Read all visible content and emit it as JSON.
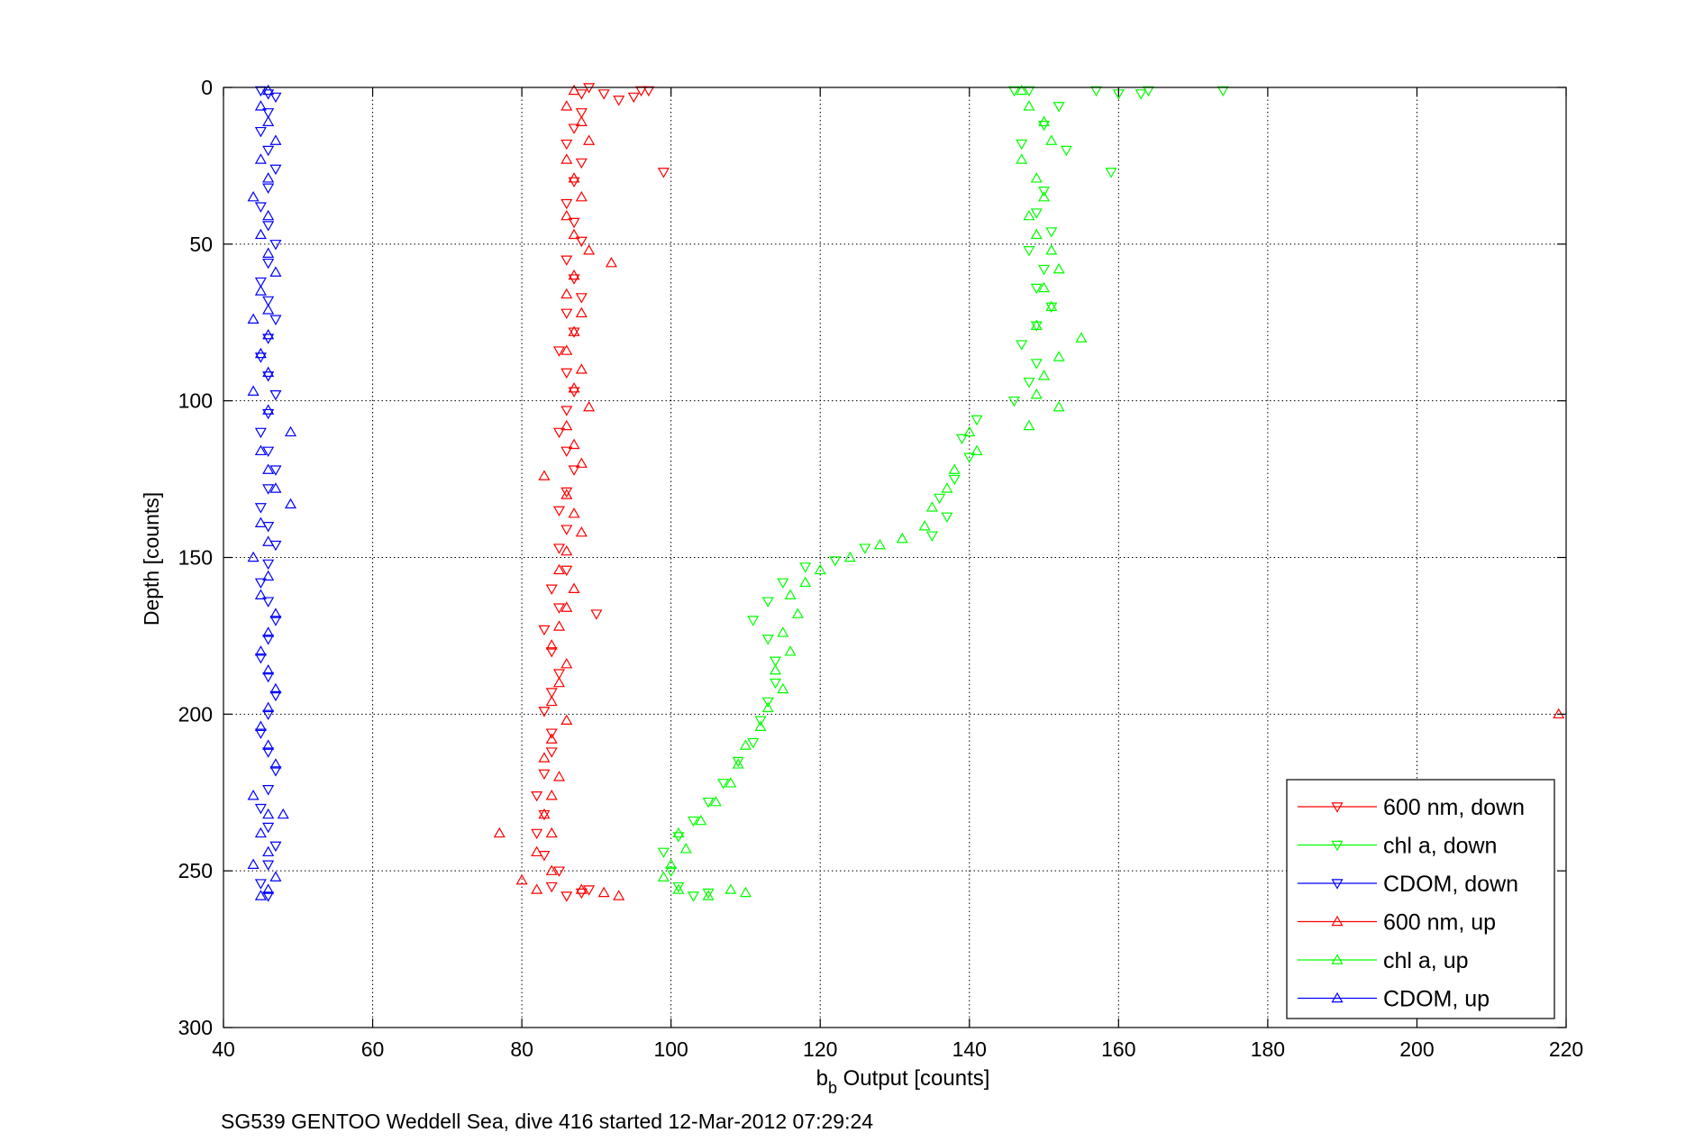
{
  "chart_data": {
    "type": "scatter",
    "xlabel_main": "b",
    "xlabel_sub": "b",
    "xlabel_rest": " Output [counts]",
    "ylabel": "Depth [counts]",
    "caption": "SG539 GENTOO Weddell Sea, dive 416 started 12-Mar-2012 07:29:24",
    "xlim": [
      40,
      220
    ],
    "ylim": [
      0,
      300
    ],
    "y_reversed": true,
    "xticks": [
      40,
      60,
      80,
      100,
      120,
      140,
      160,
      180,
      200,
      220
    ],
    "yticks": [
      0,
      50,
      100,
      150,
      200,
      250,
      300
    ],
    "grid": true,
    "legend_position": "bottom-right",
    "colors": {
      "red": "#ff0000",
      "green": "#00ff00",
      "blue": "#0000ff",
      "axis": "#000000",
      "grid": "#000000"
    },
    "series": [
      {
        "name": "600 nm, down",
        "color": "#ff0000",
        "marker": "triangle-down",
        "points": [
          [
            89,
            0
          ],
          [
            88,
            2
          ],
          [
            95,
            3
          ],
          [
            96,
            1
          ],
          [
            97,
            1
          ],
          [
            91,
            2
          ],
          [
            93,
            4
          ],
          [
            88,
            8
          ],
          [
            87,
            13
          ],
          [
            86,
            18
          ],
          [
            88,
            24
          ],
          [
            99,
            27
          ],
          [
            87,
            30
          ],
          [
            86,
            37
          ],
          [
            87,
            43
          ],
          [
            88,
            49
          ],
          [
            86,
            55
          ],
          [
            87,
            61
          ],
          [
            88,
            67
          ],
          [
            86,
            72
          ],
          [
            87,
            78
          ],
          [
            85,
            84
          ],
          [
            86,
            91
          ],
          [
            87,
            97
          ],
          [
            86,
            103
          ],
          [
            85,
            110
          ],
          [
            86,
            116
          ],
          [
            87,
            122
          ],
          [
            86,
            129
          ],
          [
            85,
            135
          ],
          [
            86,
            141
          ],
          [
            85,
            147
          ],
          [
            86,
            154
          ],
          [
            84,
            160
          ],
          [
            85,
            166
          ],
          [
            90,
            168
          ],
          [
            83,
            173
          ],
          [
            84,
            180
          ],
          [
            85,
            187
          ],
          [
            84,
            193
          ],
          [
            83,
            199
          ],
          [
            84,
            206
          ],
          [
            84,
            212
          ],
          [
            83,
            219
          ],
          [
            82,
            226
          ],
          [
            83,
            232
          ],
          [
            82,
            238
          ],
          [
            83,
            245
          ],
          [
            85,
            250
          ],
          [
            84,
            255
          ],
          [
            86,
            258
          ],
          [
            88,
            257
          ],
          [
            89,
            256
          ]
        ]
      },
      {
        "name": "chl a, down",
        "color": "#00ff00",
        "marker": "triangle-down",
        "points": [
          [
            146,
            1
          ],
          [
            148,
            1
          ],
          [
            157,
            1
          ],
          [
            160,
            2
          ],
          [
            163,
            2
          ],
          [
            164,
            1
          ],
          [
            174,
            1
          ],
          [
            152,
            6
          ],
          [
            150,
            12
          ],
          [
            147,
            18
          ],
          [
            153,
            20
          ],
          [
            159,
            27
          ],
          [
            150,
            33
          ],
          [
            149,
            40
          ],
          [
            151,
            46
          ],
          [
            148,
            52
          ],
          [
            150,
            58
          ],
          [
            149,
            64
          ],
          [
            151,
            70
          ],
          [
            149,
            76
          ],
          [
            147,
            82
          ],
          [
            149,
            88
          ],
          [
            148,
            94
          ],
          [
            146,
            100
          ],
          [
            141,
            106
          ],
          [
            139,
            112
          ],
          [
            140,
            118
          ],
          [
            138,
            125
          ],
          [
            136,
            131
          ],
          [
            137,
            137
          ],
          [
            135,
            143
          ],
          [
            126,
            147
          ],
          [
            122,
            151
          ],
          [
            118,
            153
          ],
          [
            115,
            158
          ],
          [
            113,
            164
          ],
          [
            111,
            170
          ],
          [
            113,
            176
          ],
          [
            114,
            183
          ],
          [
            114,
            190
          ],
          [
            113,
            196
          ],
          [
            112,
            202
          ],
          [
            111,
            209
          ],
          [
            109,
            215
          ],
          [
            107,
            222
          ],
          [
            105,
            228
          ],
          [
            103,
            234
          ],
          [
            101,
            239
          ],
          [
            99,
            244
          ],
          [
            100,
            250
          ],
          [
            101,
            255
          ],
          [
            103,
            258
          ],
          [
            105,
            257
          ]
        ]
      },
      {
        "name": "CDOM, down",
        "color": "#0000ff",
        "marker": "triangle-down",
        "points": [
          [
            45,
            1
          ],
          [
            46,
            2
          ],
          [
            47,
            3
          ],
          [
            46,
            8
          ],
          [
            45,
            14
          ],
          [
            46,
            20
          ],
          [
            47,
            26
          ],
          [
            46,
            32
          ],
          [
            45,
            38
          ],
          [
            46,
            44
          ],
          [
            47,
            50
          ],
          [
            46,
            56
          ],
          [
            45,
            62
          ],
          [
            46,
            68
          ],
          [
            47,
            74
          ],
          [
            46,
            80
          ],
          [
            45,
            86
          ],
          [
            46,
            92
          ],
          [
            47,
            98
          ],
          [
            46,
            104
          ],
          [
            45,
            110
          ],
          [
            46,
            116
          ],
          [
            47,
            122
          ],
          [
            46,
            128
          ],
          [
            45,
            134
          ],
          [
            46,
            140
          ],
          [
            47,
            146
          ],
          [
            46,
            152
          ],
          [
            45,
            158
          ],
          [
            46,
            164
          ],
          [
            47,
            170
          ],
          [
            46,
            176
          ],
          [
            45,
            182
          ],
          [
            46,
            188
          ],
          [
            47,
            194
          ],
          [
            46,
            200
          ],
          [
            45,
            206
          ],
          [
            46,
            212
          ],
          [
            47,
            218
          ],
          [
            46,
            224
          ],
          [
            45,
            230
          ],
          [
            46,
            236
          ],
          [
            47,
            242
          ],
          [
            46,
            248
          ],
          [
            45,
            254
          ],
          [
            46,
            258
          ]
        ]
      },
      {
        "name": "600 nm, up",
        "color": "#ff0000",
        "marker": "triangle-up",
        "points": [
          [
            87,
            1
          ],
          [
            86,
            6
          ],
          [
            88,
            11
          ],
          [
            89,
            17
          ],
          [
            86,
            23
          ],
          [
            87,
            29
          ],
          [
            88,
            35
          ],
          [
            86,
            41
          ],
          [
            87,
            47
          ],
          [
            89,
            52
          ],
          [
            92,
            56
          ],
          [
            87,
            60
          ],
          [
            86,
            66
          ],
          [
            88,
            72
          ],
          [
            87,
            78
          ],
          [
            86,
            84
          ],
          [
            88,
            90
          ],
          [
            87,
            96
          ],
          [
            89,
            102
          ],
          [
            86,
            108
          ],
          [
            87,
            114
          ],
          [
            88,
            120
          ],
          [
            83,
            124
          ],
          [
            86,
            130
          ],
          [
            87,
            136
          ],
          [
            88,
            142
          ],
          [
            86,
            148
          ],
          [
            85,
            154
          ],
          [
            87,
            160
          ],
          [
            86,
            166
          ],
          [
            85,
            172
          ],
          [
            84,
            178
          ],
          [
            86,
            184
          ],
          [
            85,
            190
          ],
          [
            84,
            196
          ],
          [
            86,
            202
          ],
          [
            84,
            208
          ],
          [
            83,
            214
          ],
          [
            85,
            220
          ],
          [
            84,
            226
          ],
          [
            83,
            232
          ],
          [
            84,
            238
          ],
          [
            77,
            238
          ],
          [
            82,
            244
          ],
          [
            84,
            250
          ],
          [
            80,
            253
          ],
          [
            82,
            256
          ],
          [
            88,
            256
          ],
          [
            91,
            257
          ],
          [
            93,
            258
          ],
          [
            219,
            200
          ]
        ]
      },
      {
        "name": "chl a, up",
        "color": "#00ff00",
        "marker": "triangle-up",
        "points": [
          [
            147,
            1
          ],
          [
            148,
            6
          ],
          [
            150,
            11
          ],
          [
            151,
            17
          ],
          [
            147,
            23
          ],
          [
            149,
            29
          ],
          [
            150,
            35
          ],
          [
            148,
            41
          ],
          [
            149,
            47
          ],
          [
            151,
            52
          ],
          [
            152,
            58
          ],
          [
            150,
            64
          ],
          [
            151,
            70
          ],
          [
            149,
            76
          ],
          [
            155,
            80
          ],
          [
            152,
            86
          ],
          [
            150,
            92
          ],
          [
            149,
            98
          ],
          [
            152,
            102
          ],
          [
            148,
            108
          ],
          [
            140,
            110
          ],
          [
            141,
            116
          ],
          [
            138,
            122
          ],
          [
            137,
            128
          ],
          [
            135,
            134
          ],
          [
            134,
            140
          ],
          [
            131,
            144
          ],
          [
            128,
            146
          ],
          [
            124,
            150
          ],
          [
            120,
            154
          ],
          [
            118,
            158
          ],
          [
            116,
            162
          ],
          [
            117,
            168
          ],
          [
            115,
            174
          ],
          [
            116,
            180
          ],
          [
            114,
            186
          ],
          [
            115,
            192
          ],
          [
            113,
            198
          ],
          [
            112,
            204
          ],
          [
            110,
            210
          ],
          [
            109,
            216
          ],
          [
            108,
            222
          ],
          [
            106,
            228
          ],
          [
            104,
            234
          ],
          [
            101,
            238
          ],
          [
            102,
            243
          ],
          [
            100,
            248
          ],
          [
            99,
            252
          ],
          [
            101,
            256
          ],
          [
            108,
            256
          ],
          [
            110,
            257
          ],
          [
            105,
            258
          ]
        ]
      },
      {
        "name": "CDOM, up",
        "color": "#0000ff",
        "marker": "triangle-up",
        "points": [
          [
            46,
            1
          ],
          [
            45,
            6
          ],
          [
            46,
            11
          ],
          [
            47,
            17
          ],
          [
            45,
            23
          ],
          [
            46,
            29
          ],
          [
            44,
            35
          ],
          [
            46,
            41
          ],
          [
            45,
            47
          ],
          [
            46,
            53
          ],
          [
            47,
            59
          ],
          [
            45,
            65
          ],
          [
            46,
            71
          ],
          [
            44,
            74
          ],
          [
            46,
            79
          ],
          [
            45,
            85
          ],
          [
            46,
            91
          ],
          [
            44,
            97
          ],
          [
            46,
            103
          ],
          [
            49,
            110
          ],
          [
            45,
            116
          ],
          [
            46,
            122
          ],
          [
            47,
            128
          ],
          [
            49,
            133
          ],
          [
            45,
            139
          ],
          [
            46,
            145
          ],
          [
            44,
            150
          ],
          [
            46,
            156
          ],
          [
            45,
            162
          ],
          [
            47,
            168
          ],
          [
            46,
            174
          ],
          [
            45,
            180
          ],
          [
            46,
            186
          ],
          [
            47,
            192
          ],
          [
            46,
            198
          ],
          [
            45,
            204
          ],
          [
            46,
            210
          ],
          [
            47,
            216
          ],
          [
            44,
            226
          ],
          [
            46,
            232
          ],
          [
            48,
            232
          ],
          [
            45,
            238
          ],
          [
            46,
            244
          ],
          [
            44,
            248
          ],
          [
            47,
            252
          ],
          [
            46,
            256
          ],
          [
            45,
            258
          ]
        ]
      }
    ]
  }
}
